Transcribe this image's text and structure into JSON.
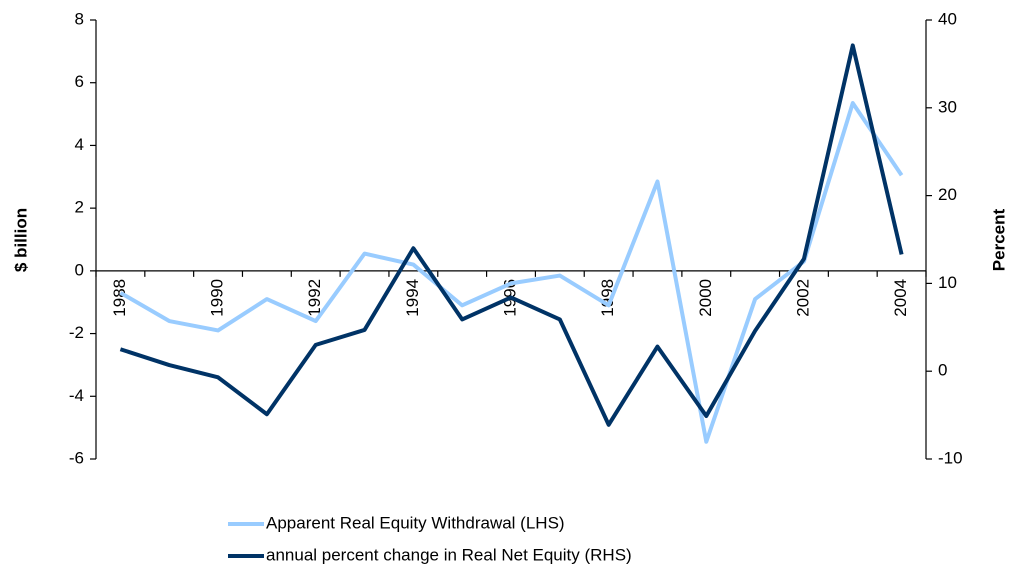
{
  "chart_data": {
    "type": "line",
    "categories": [
      "1988",
      null,
      "1990",
      null,
      "1992",
      null,
      "1994",
      null,
      "1996",
      null,
      "1998",
      null,
      "2000",
      null,
      "2002",
      null,
      "2004"
    ],
    "y_label": "$ billion",
    "y2_label": "Percent",
    "ylim": [
      -6,
      8
    ],
    "yticks": [
      -6,
      -4,
      -2,
      0,
      2,
      4,
      6,
      8
    ],
    "y2lim": [
      -10,
      40
    ],
    "y2ticks": [
      -10,
      0,
      10,
      20,
      30,
      40
    ],
    "series": [
      {
        "name": "Apparent Real Equity Withdrawal (LHS)",
        "color": "#99ccff",
        "values": [
          -0.7,
          -1.6,
          -1.9,
          -0.9,
          -1.6,
          0.55,
          0.2,
          -1.1,
          -0.4,
          -0.15,
          -1.1,
          2.85,
          -5.45,
          -0.9,
          0.3,
          5.35,
          3.05
        ]
      },
      {
        "name": "annual percent change in Real Net Equity (RHS)",
        "color": "#003366",
        "axis": "y2",
        "values": [
          2.5,
          0.7,
          -0.7,
          -4.9,
          3.0,
          4.7,
          14.0,
          5.9,
          8.4,
          5.9,
          -6.1,
          2.8,
          -5.1,
          4.6,
          12.8,
          37.1,
          13.3
        ]
      }
    ]
  }
}
